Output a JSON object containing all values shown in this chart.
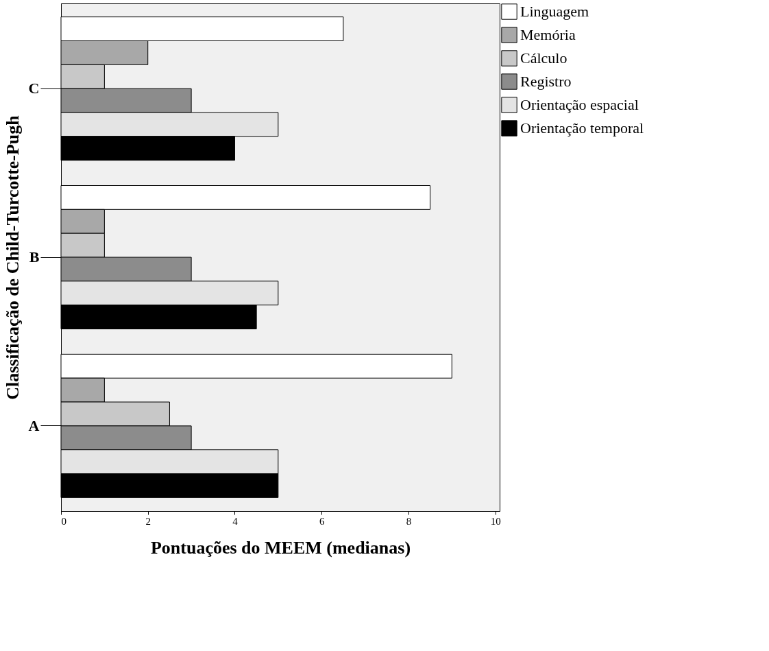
{
  "chart_data": {
    "type": "bar",
    "orientation": "horizontal",
    "xlabel": "Pontuações do MEEM (medianas)",
    "ylabel": "Classificação de Child-Turcotte-Pugh",
    "categories": [
      "C",
      "B",
      "A"
    ],
    "series": [
      {
        "name": "Linguagem",
        "color": "#ffffff",
        "values": [
          6.5,
          8.5,
          9
        ]
      },
      {
        "name": "Memória",
        "color": "#a8a8a8",
        "values": [
          2,
          1,
          1
        ]
      },
      {
        "name": "Cálculo",
        "color": "#c8c8c8",
        "values": [
          1,
          1,
          2.5
        ]
      },
      {
        "name": "Registro",
        "color": "#8c8c8c",
        "values": [
          3,
          3,
          3
        ]
      },
      {
        "name": "Orientação espacial",
        "color": "#e4e4e4",
        "values": [
          5,
          5,
          5
        ]
      },
      {
        "name": "Orientação temporal",
        "color": "#000000",
        "values": [
          4,
          4.5,
          5
        ]
      }
    ],
    "xlim": [
      0,
      10.1
    ],
    "xticks": [
      0,
      2,
      4,
      6,
      8,
      10
    ],
    "grid": false,
    "legend": "top right"
  }
}
